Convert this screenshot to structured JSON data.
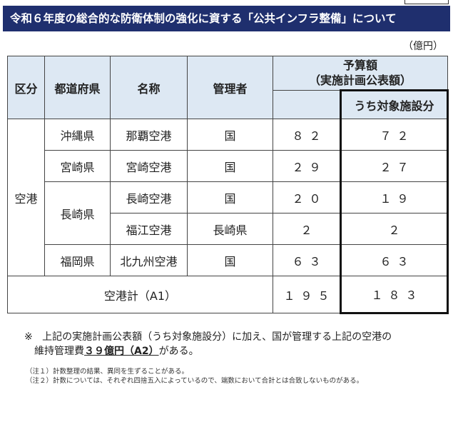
{
  "title": "令和６年度の総合的な防衛体制の強化に資する「公共インフラ整備」について",
  "unit": "（億円）",
  "table": {
    "headers": {
      "category": "区分",
      "prefecture": "都道府県",
      "name": "名称",
      "manager": "管理者",
      "budget_line1": "予算額",
      "budget_line2": "（実施計画公表額）",
      "target": "うち対象施設分"
    },
    "category": "空港",
    "rows": [
      {
        "prefecture": "沖縄県",
        "name": "那覇空港",
        "manager": "国",
        "budget": "８２",
        "target": "７２"
      },
      {
        "prefecture": "宮崎県",
        "name": "宮崎空港",
        "manager": "国",
        "budget": "２９",
        "target": "２７"
      },
      {
        "prefecture": "長崎県",
        "name": "長崎空港",
        "manager": "国",
        "budget": "２０",
        "target": "１９"
      },
      {
        "prefecture": "",
        "name": "福江空港",
        "manager": "長崎県",
        "budget": "２",
        "target": "２"
      },
      {
        "prefecture": "福岡県",
        "name": "北九州空港",
        "manager": "国",
        "budget": "６３",
        "target": "６３"
      }
    ],
    "total": {
      "label": "空港計（A1）",
      "budget": "１９５",
      "target": "１８３"
    }
  },
  "note": {
    "mark": "※",
    "text1": "上記の実施計画公表額（うち対象施設分）に加え、国が管理する上記の空港の",
    "text2_pre": "維持管理費",
    "text2_emph": "３９億円（A2）",
    "text2_post": "がある。"
  },
  "footnotes": [
    "（注１）計数整理の結果、異同を生ずることがある。",
    "（注２）計数については、それぞれ四捨五入によっているので、端数において合計とは合致しないものがある。"
  ]
}
